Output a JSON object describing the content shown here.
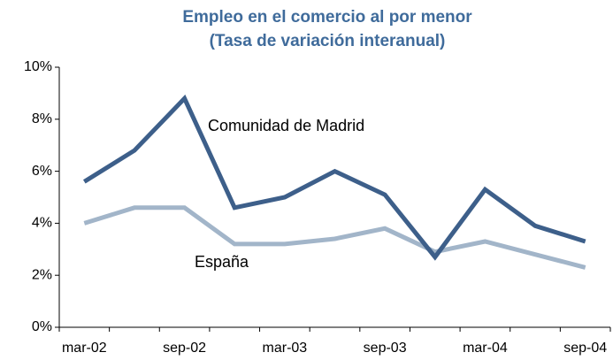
{
  "chart_data": {
    "type": "line",
    "title": "Empleo en el comercio al por menor",
    "subtitle": "(Tasa de variación interanual)",
    "categories": [
      "mar-02",
      null,
      "sep-02",
      null,
      "mar-03",
      null,
      "sep-03",
      null,
      "mar-04",
      null,
      "sep-04"
    ],
    "series": [
      {
        "name": "Comunidad de Madrid",
        "color": "#3d5f8a",
        "values": [
          5.6,
          6.8,
          8.8,
          4.6,
          5.0,
          6.0,
          5.1,
          2.7,
          5.3,
          3.9,
          3.3
        ]
      },
      {
        "name": "España",
        "color": "#a2b5c9",
        "values": [
          4.0,
          4.6,
          4.6,
          3.2,
          3.2,
          3.4,
          3.8,
          2.9,
          3.3,
          2.8,
          2.3
        ]
      }
    ],
    "ylim": [
      0,
      10
    ],
    "yticks": [
      {
        "value": 0,
        "label": "0%"
      },
      {
        "value": 2,
        "label": "2%"
      },
      {
        "value": 4,
        "label": "4%"
      },
      {
        "value": 6,
        "label": "6%"
      },
      {
        "value": 8,
        "label": "8%"
      },
      {
        "value": 10,
        "label": "10%"
      }
    ]
  }
}
